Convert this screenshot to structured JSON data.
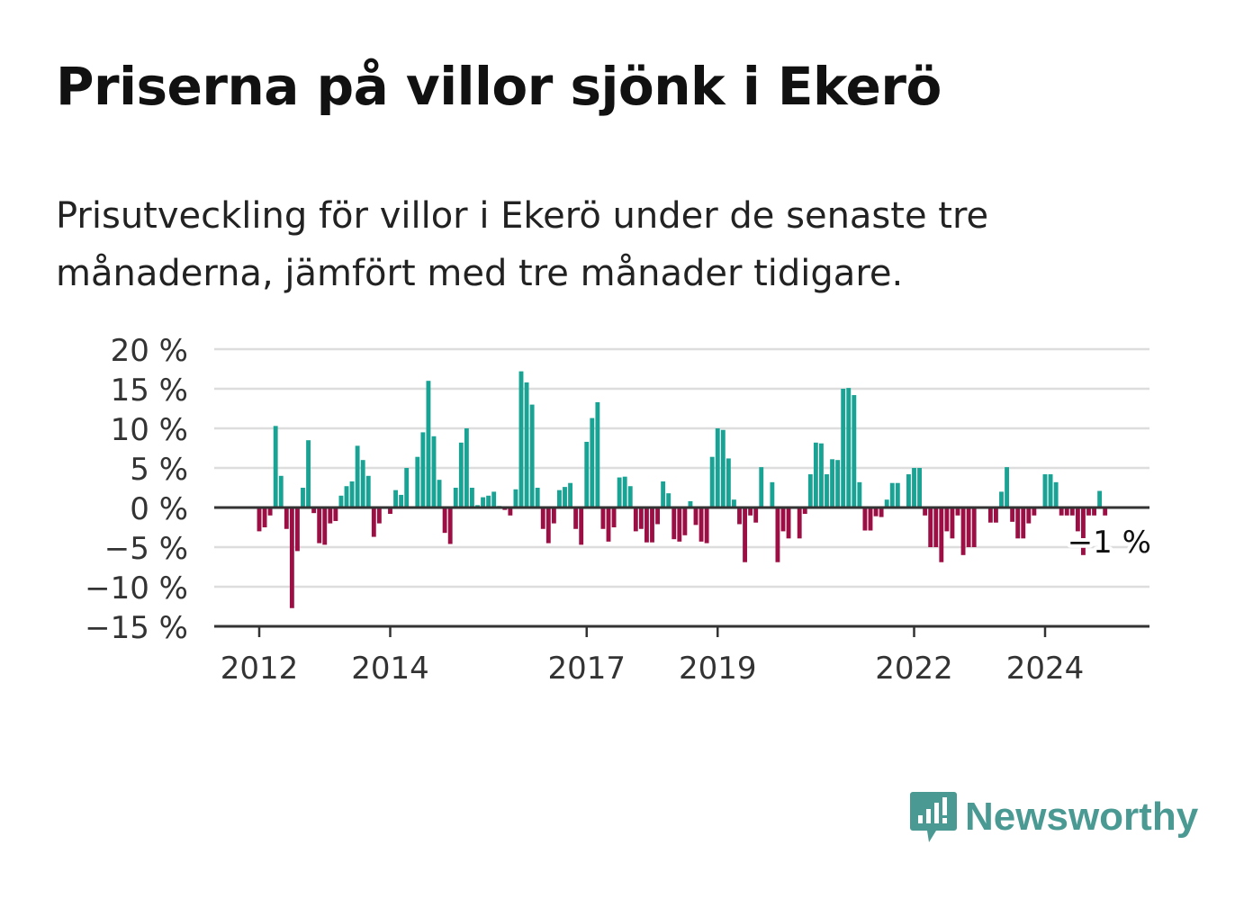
{
  "title": "Priserna på villor sjönk i Ekerö",
  "subtitle": "Prisutveckling för villor i Ekerö under de senaste tre månaderna, jämfört med tre månader tidigare.",
  "brand": "Newsworthy",
  "colors": {
    "positive": "#18a394",
    "negative": "#9b0f44",
    "brand": "#4a9a93",
    "grid": "#dddddd",
    "axis": "#333333"
  },
  "chart_data": {
    "type": "bar",
    "ylim": [
      -15,
      20
    ],
    "yticks": [
      20,
      15,
      10,
      5,
      0,
      -5,
      -10,
      -15
    ],
    "ytick_labels": [
      "20 %",
      "15 %",
      "10 %",
      "5 %",
      "0 %",
      "−5 %",
      "−10 %",
      "−15 %"
    ],
    "xticks": [
      2012,
      2014,
      2017,
      2019,
      2022,
      2024
    ],
    "grid": true,
    "annotation": "−1 %",
    "start": "2011-09",
    "values": [
      0,
      0,
      0,
      0,
      -3,
      -2.5,
      -1,
      10.3,
      4,
      -2.7,
      -12.7,
      -5.5,
      2.5,
      8.5,
      -0.7,
      -4.5,
      -4.7,
      -2,
      -1.7,
      1.5,
      2.7,
      3.3,
      7.8,
      6,
      4,
      -3.7,
      -2,
      0,
      -0.8,
      2.2,
      1.6,
      5,
      0,
      6.4,
      9.5,
      16,
      9,
      3.5,
      -3.2,
      -4.6,
      2.5,
      8.2,
      10,
      2.5,
      0.3,
      1.3,
      1.5,
      2,
      0.2,
      -0.3,
      -1,
      2.3,
      17.2,
      15.8,
      13,
      2.5,
      -2.7,
      -4.5,
      -2,
      2.2,
      2.6,
      3.1,
      -2.7,
      -4.7,
      8.3,
      11.3,
      13.3,
      -2.7,
      -4.3,
      -2.5,
      3.8,
      3.9,
      2.7,
      -3,
      -2.7,
      -4.4,
      -4.4,
      -2.1,
      3.3,
      1.8,
      -4,
      -4.3,
      -3.5,
      0.8,
      -2.2,
      -4.3,
      -4.5,
      6.4,
      10,
      9.8,
      6.2,
      1,
      -2.1,
      -6.9,
      -1,
      -1.9,
      5.1,
      0,
      3.2,
      -6.9,
      -3,
      -3.9,
      0,
      -3.9,
      -0.8,
      4.2,
      8.2,
      8.1,
      4.2,
      6.1,
      6,
      15,
      15.1,
      14.2,
      3.2,
      -2.9,
      -2.9,
      -1.1,
      -1.2,
      1,
      3.1,
      3.1,
      0,
      4.2,
      5,
      5,
      -1,
      -5,
      -5,
      -6.9,
      -3,
      -3.9,
      -1,
      -6,
      -5,
      -5,
      0,
      0,
      -1.9,
      -1.9,
      2,
      5.1,
      -1.8,
      -3.9,
      -3.9,
      -2,
      -1,
      0,
      4.2,
      4.2,
      3.2,
      -1,
      -1,
      -1,
      -3,
      -6,
      -1,
      -1,
      2.1,
      -1
    ]
  }
}
